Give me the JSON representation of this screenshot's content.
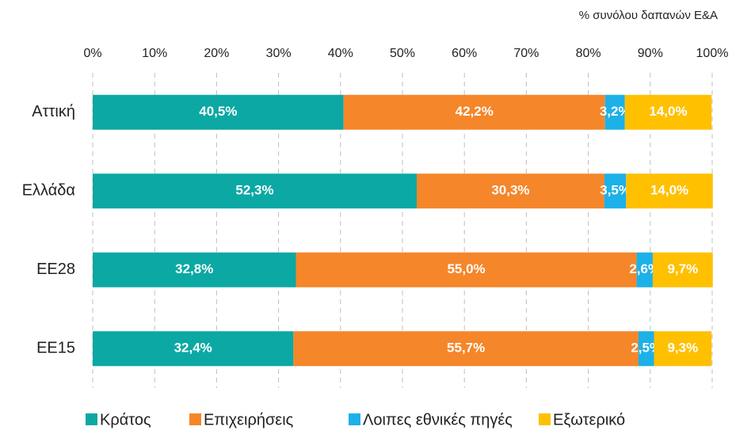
{
  "chart_data": {
    "type": "stacked-barh",
    "axis_label": "% συνόλου δαπανών Ε&Α",
    "categories": [
      "Αττική",
      "Ελλάδα",
      "ΕΕ28",
      "ΕΕ15"
    ],
    "series": [
      {
        "name": "Κράτος",
        "color": "#0ba8a4",
        "values": [
          40.5,
          52.3,
          32.8,
          32.4
        ],
        "value_labels": [
          "40,5%",
          "52,3%",
          "32,8%",
          "32,4%"
        ]
      },
      {
        "name": "Επιχειρήσεις",
        "color": "#f5862a",
        "values": [
          42.2,
          30.3,
          55.0,
          55.7
        ],
        "value_labels": [
          "42,2%",
          "30,3%",
          "55,0%",
          "55,7%"
        ]
      },
      {
        "name": "Λοιπες εθνικές πηγές",
        "color": "#1cb1e8",
        "values": [
          3.2,
          3.5,
          2.6,
          2.5
        ],
        "value_labels": [
          "3,2%",
          "3,5%",
          "2,6%",
          "2,5%"
        ]
      },
      {
        "name": "Εξωτερικό",
        "color": "#ffc000",
        "values": [
          14.0,
          14.0,
          9.7,
          9.3
        ],
        "value_labels": [
          "14,0%",
          "14,0%",
          "9,7%",
          "9,3%"
        ]
      }
    ],
    "xlim": [
      0,
      100
    ],
    "xticks": [
      {
        "value": 0,
        "label": "0%"
      },
      {
        "value": 10,
        "label": "10%"
      },
      {
        "value": 20,
        "label": "20%"
      },
      {
        "value": 30,
        "label": "30%"
      },
      {
        "value": 40,
        "label": "40%"
      },
      {
        "value": 50,
        "label": "50%"
      },
      {
        "value": 60,
        "label": "60%"
      },
      {
        "value": 70,
        "label": "70%"
      },
      {
        "value": 80,
        "label": "80%"
      },
      {
        "value": 90,
        "label": "90%"
      },
      {
        "value": 100,
        "label": "100%"
      }
    ],
    "grid": true,
    "legend": "bottom"
  }
}
